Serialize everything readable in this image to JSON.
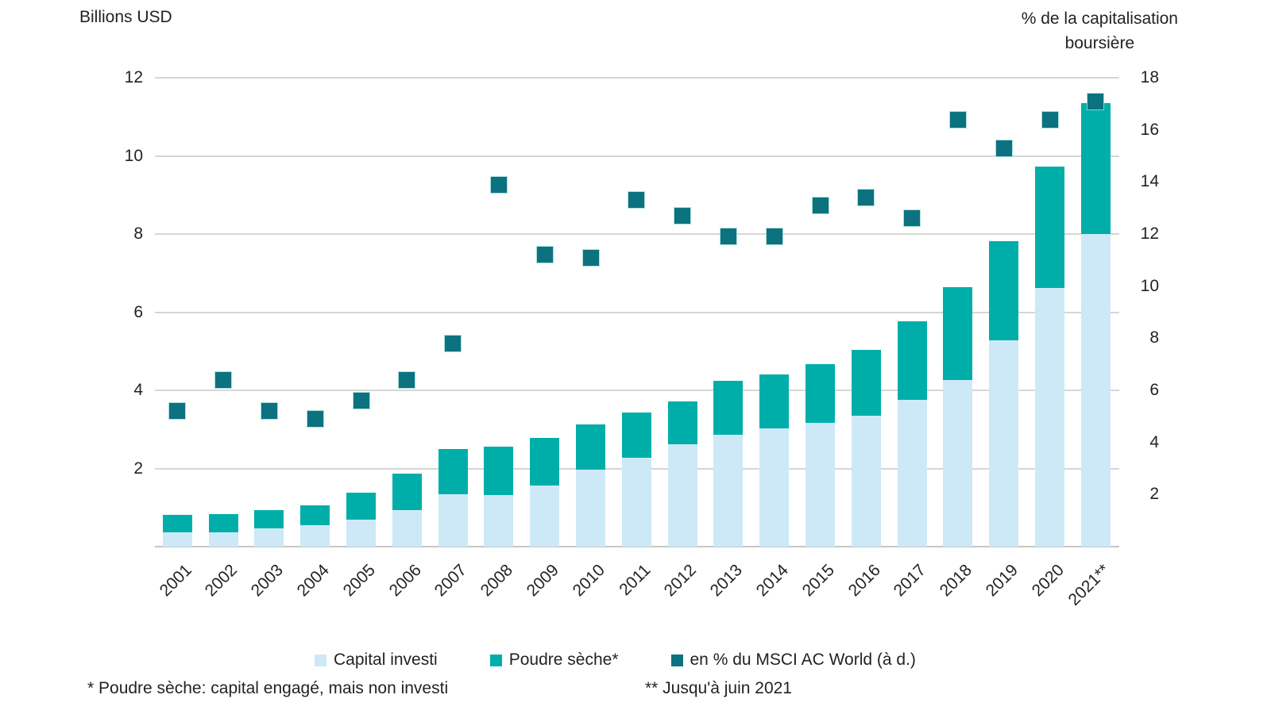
{
  "colors": {
    "capital": "#cde9f8",
    "poudre": "#00aea9",
    "msci": "#0c7280",
    "grid": "#d6d6d6",
    "text": "#232323"
  },
  "footnotes": {
    "left": "* Poudre sèche: capital engagé, mais non investi",
    "right": "** Jusqu'à juin 2021"
  },
  "chart_data": {
    "type": "bar",
    "stacked": true,
    "grid": true,
    "legend_position": "bottom",
    "categories": [
      "2001",
      "2002",
      "2003",
      "2004",
      "2005",
      "2006",
      "2007",
      "2008",
      "2009",
      "2010",
      "2011",
      "2012",
      "2013",
      "2014",
      "2015",
      "2016",
      "2017",
      "2018",
      "2019",
      "2020",
      "2021**"
    ],
    "left_axis": {
      "title": "Billions USD",
      "range": [
        0,
        12
      ],
      "ticks": [
        2,
        4,
        6,
        8,
        10,
        12
      ]
    },
    "right_axis": {
      "title_lines": [
        "% de la capitalisation",
        "boursière"
      ],
      "range": [
        0,
        18
      ],
      "ticks": [
        2,
        4,
        6,
        8,
        10,
        12,
        14,
        16,
        18
      ]
    },
    "series": [
      {
        "name": "Capital investi",
        "type": "bar",
        "axis": "left",
        "color_key": "capital",
        "values": [
          0.37,
          0.37,
          0.47,
          0.55,
          0.7,
          0.94,
          1.35,
          1.31,
          1.56,
          1.96,
          2.28,
          2.62,
          2.87,
          3.03,
          3.17,
          3.36,
          3.75,
          4.26,
          5.28,
          6.62,
          8.0
        ]
      },
      {
        "name": "Poudre sèche*",
        "type": "bar",
        "axis": "left",
        "color_key": "poudre",
        "values": [
          0.44,
          0.46,
          0.47,
          0.51,
          0.68,
          0.93,
          1.15,
          1.25,
          1.23,
          1.16,
          1.15,
          1.1,
          1.37,
          1.37,
          1.49,
          1.67,
          2.02,
          2.38,
          2.53,
          3.1,
          3.36
        ]
      },
      {
        "name": "en % du MSCI AC World (à d.)",
        "type": "scatter",
        "axis": "right",
        "color_key": "msci",
        "values": [
          5.2,
          6.4,
          5.2,
          4.9,
          5.6,
          6.4,
          7.8,
          13.9,
          11.2,
          11.1,
          13.3,
          12.7,
          11.9,
          11.9,
          13.1,
          13.4,
          12.6,
          16.4,
          15.3,
          16.4,
          17.1
        ]
      }
    ]
  }
}
